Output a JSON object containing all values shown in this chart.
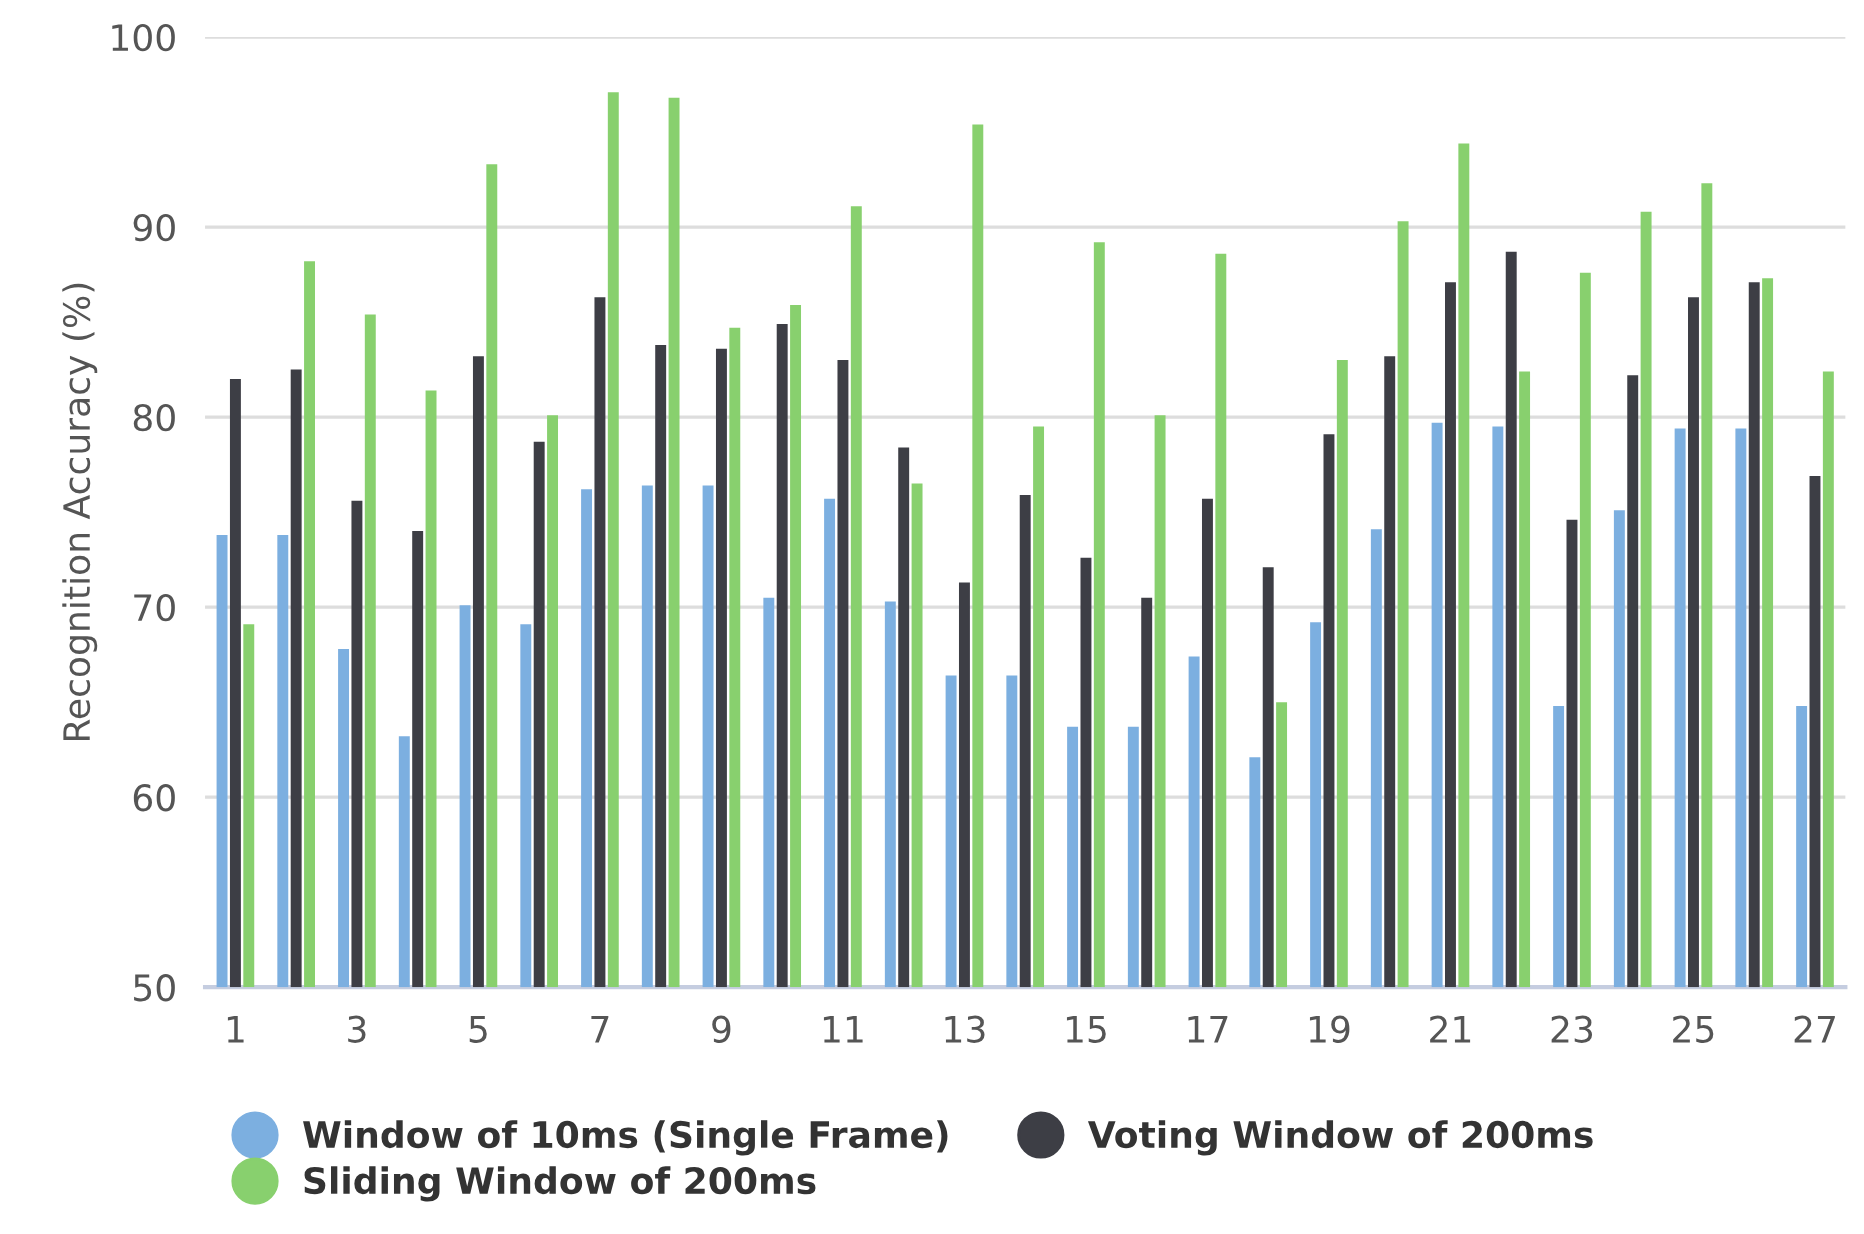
{
  "chart_data": {
    "type": "bar",
    "ylabel": "Recognition Accuracy (%)",
    "categories": [
      "1",
      null,
      "3",
      null,
      "5",
      null,
      "7",
      null,
      "9",
      null,
      "11",
      null,
      "13",
      null,
      "15",
      null,
      "17",
      null,
      "19",
      null,
      "21",
      null,
      "23",
      null,
      "25",
      null,
      "27"
    ],
    "series": [
      {
        "name": "Window of 10ms (Single Frame)",
        "color": "#7cafe0",
        "values": [
          73.8,
          73.8,
          67.8,
          63.2,
          70.1,
          69.1,
          76.2,
          76.4,
          76.4,
          70.5,
          75.7,
          70.3,
          66.4,
          66.4,
          63.7,
          63.7,
          67.4,
          62.1,
          69.2,
          74.1,
          79.7,
          79.5,
          64.8,
          75.1,
          79.4,
          79.4,
          64.8
        ]
      },
      {
        "name": "Voting Window of 200ms",
        "color": "#3d3e45",
        "values": [
          82.0,
          82.5,
          75.6,
          74.0,
          83.2,
          78.7,
          86.3,
          83.8,
          83.6,
          84.9,
          83.0,
          78.4,
          71.3,
          75.9,
          72.6,
          70.5,
          75.7,
          72.1,
          79.1,
          83.2,
          87.1,
          88.7,
          74.6,
          82.2,
          86.3,
          87.1,
          76.9
        ]
      },
      {
        "name": "Sliding Window of 200ms",
        "color": "#88d06e",
        "values": [
          69.1,
          88.2,
          85.4,
          81.4,
          93.3,
          80.1,
          97.1,
          96.8,
          84.7,
          85.9,
          91.1,
          76.5,
          95.4,
          79.5,
          89.2,
          80.1,
          88.6,
          65.0,
          83.0,
          90.3,
          94.4,
          82.4,
          87.6,
          90.8,
          92.3,
          87.3,
          82.4
        ]
      }
    ],
    "ylim": [
      50,
      100
    ],
    "yticks": [
      50,
      60,
      70,
      80,
      90,
      100
    ],
    "grid": "y",
    "legend": "bottom left",
    "marker": "circle"
  }
}
